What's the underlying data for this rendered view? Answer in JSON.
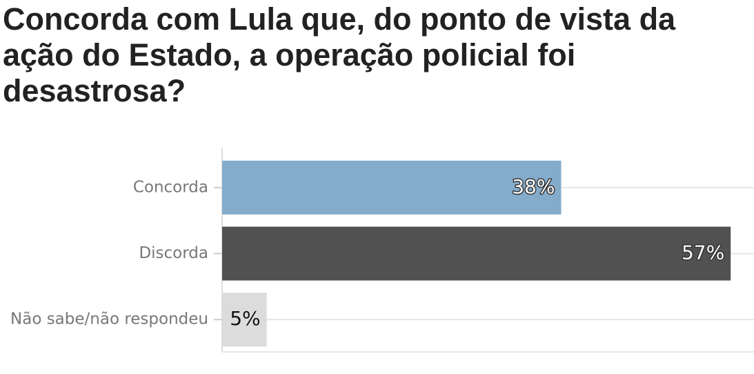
{
  "chart_data": {
    "type": "hbar",
    "title": "Concorda com Lula que, do ponto de vista da ação do Estado, a operação policial foi desastrosa?",
    "categories": [
      "Concorda",
      "Discorda",
      "Não sabe/não respondeu"
    ],
    "values": [
      38,
      57,
      5
    ],
    "value_labels": [
      "38%",
      "57%",
      "5%"
    ],
    "colors": [
      "#84abca",
      "#515151",
      "#dcdcdc"
    ],
    "xlim": [
      0,
      60
    ],
    "grid": true
  }
}
